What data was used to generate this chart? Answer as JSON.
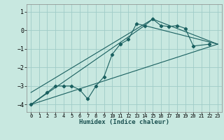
{
  "title": "",
  "xlabel": "Humidex (Indice chaleur)",
  "background_color": "#c8e8e0",
  "grid_color": "#a0ccc8",
  "line_color": "#1a6060",
  "xlim": [
    -0.5,
    23.5
  ],
  "ylim": [
    -4.4,
    1.4
  ],
  "yticks": [
    -4,
    -3,
    -2,
    -1,
    0,
    1
  ],
  "xticks": [
    0,
    1,
    2,
    3,
    4,
    5,
    6,
    7,
    8,
    9,
    10,
    11,
    12,
    13,
    14,
    15,
    16,
    17,
    18,
    19,
    20,
    21,
    22,
    23
  ],
  "series1_x": [
    0,
    2,
    3,
    4,
    5,
    6,
    7,
    8,
    9,
    10,
    11,
    12,
    13,
    14,
    15,
    16,
    17,
    18,
    19,
    20,
    22
  ],
  "series1_y": [
    -4.0,
    -3.35,
    -3.0,
    -3.0,
    -3.0,
    -3.2,
    -3.7,
    -3.0,
    -2.5,
    -1.3,
    -0.75,
    -0.5,
    0.35,
    0.25,
    0.6,
    0.25,
    0.2,
    0.25,
    0.1,
    -0.85,
    -0.75
  ],
  "series2_x": [
    0,
    23
  ],
  "series2_y": [
    -4.0,
    -0.75
  ],
  "series3_x": [
    0,
    14,
    23
  ],
  "series3_y": [
    -4.0,
    0.25,
    -0.75
  ],
  "series4_x": [
    0,
    15,
    23
  ],
  "series4_y": [
    -3.35,
    0.6,
    -0.75
  ]
}
